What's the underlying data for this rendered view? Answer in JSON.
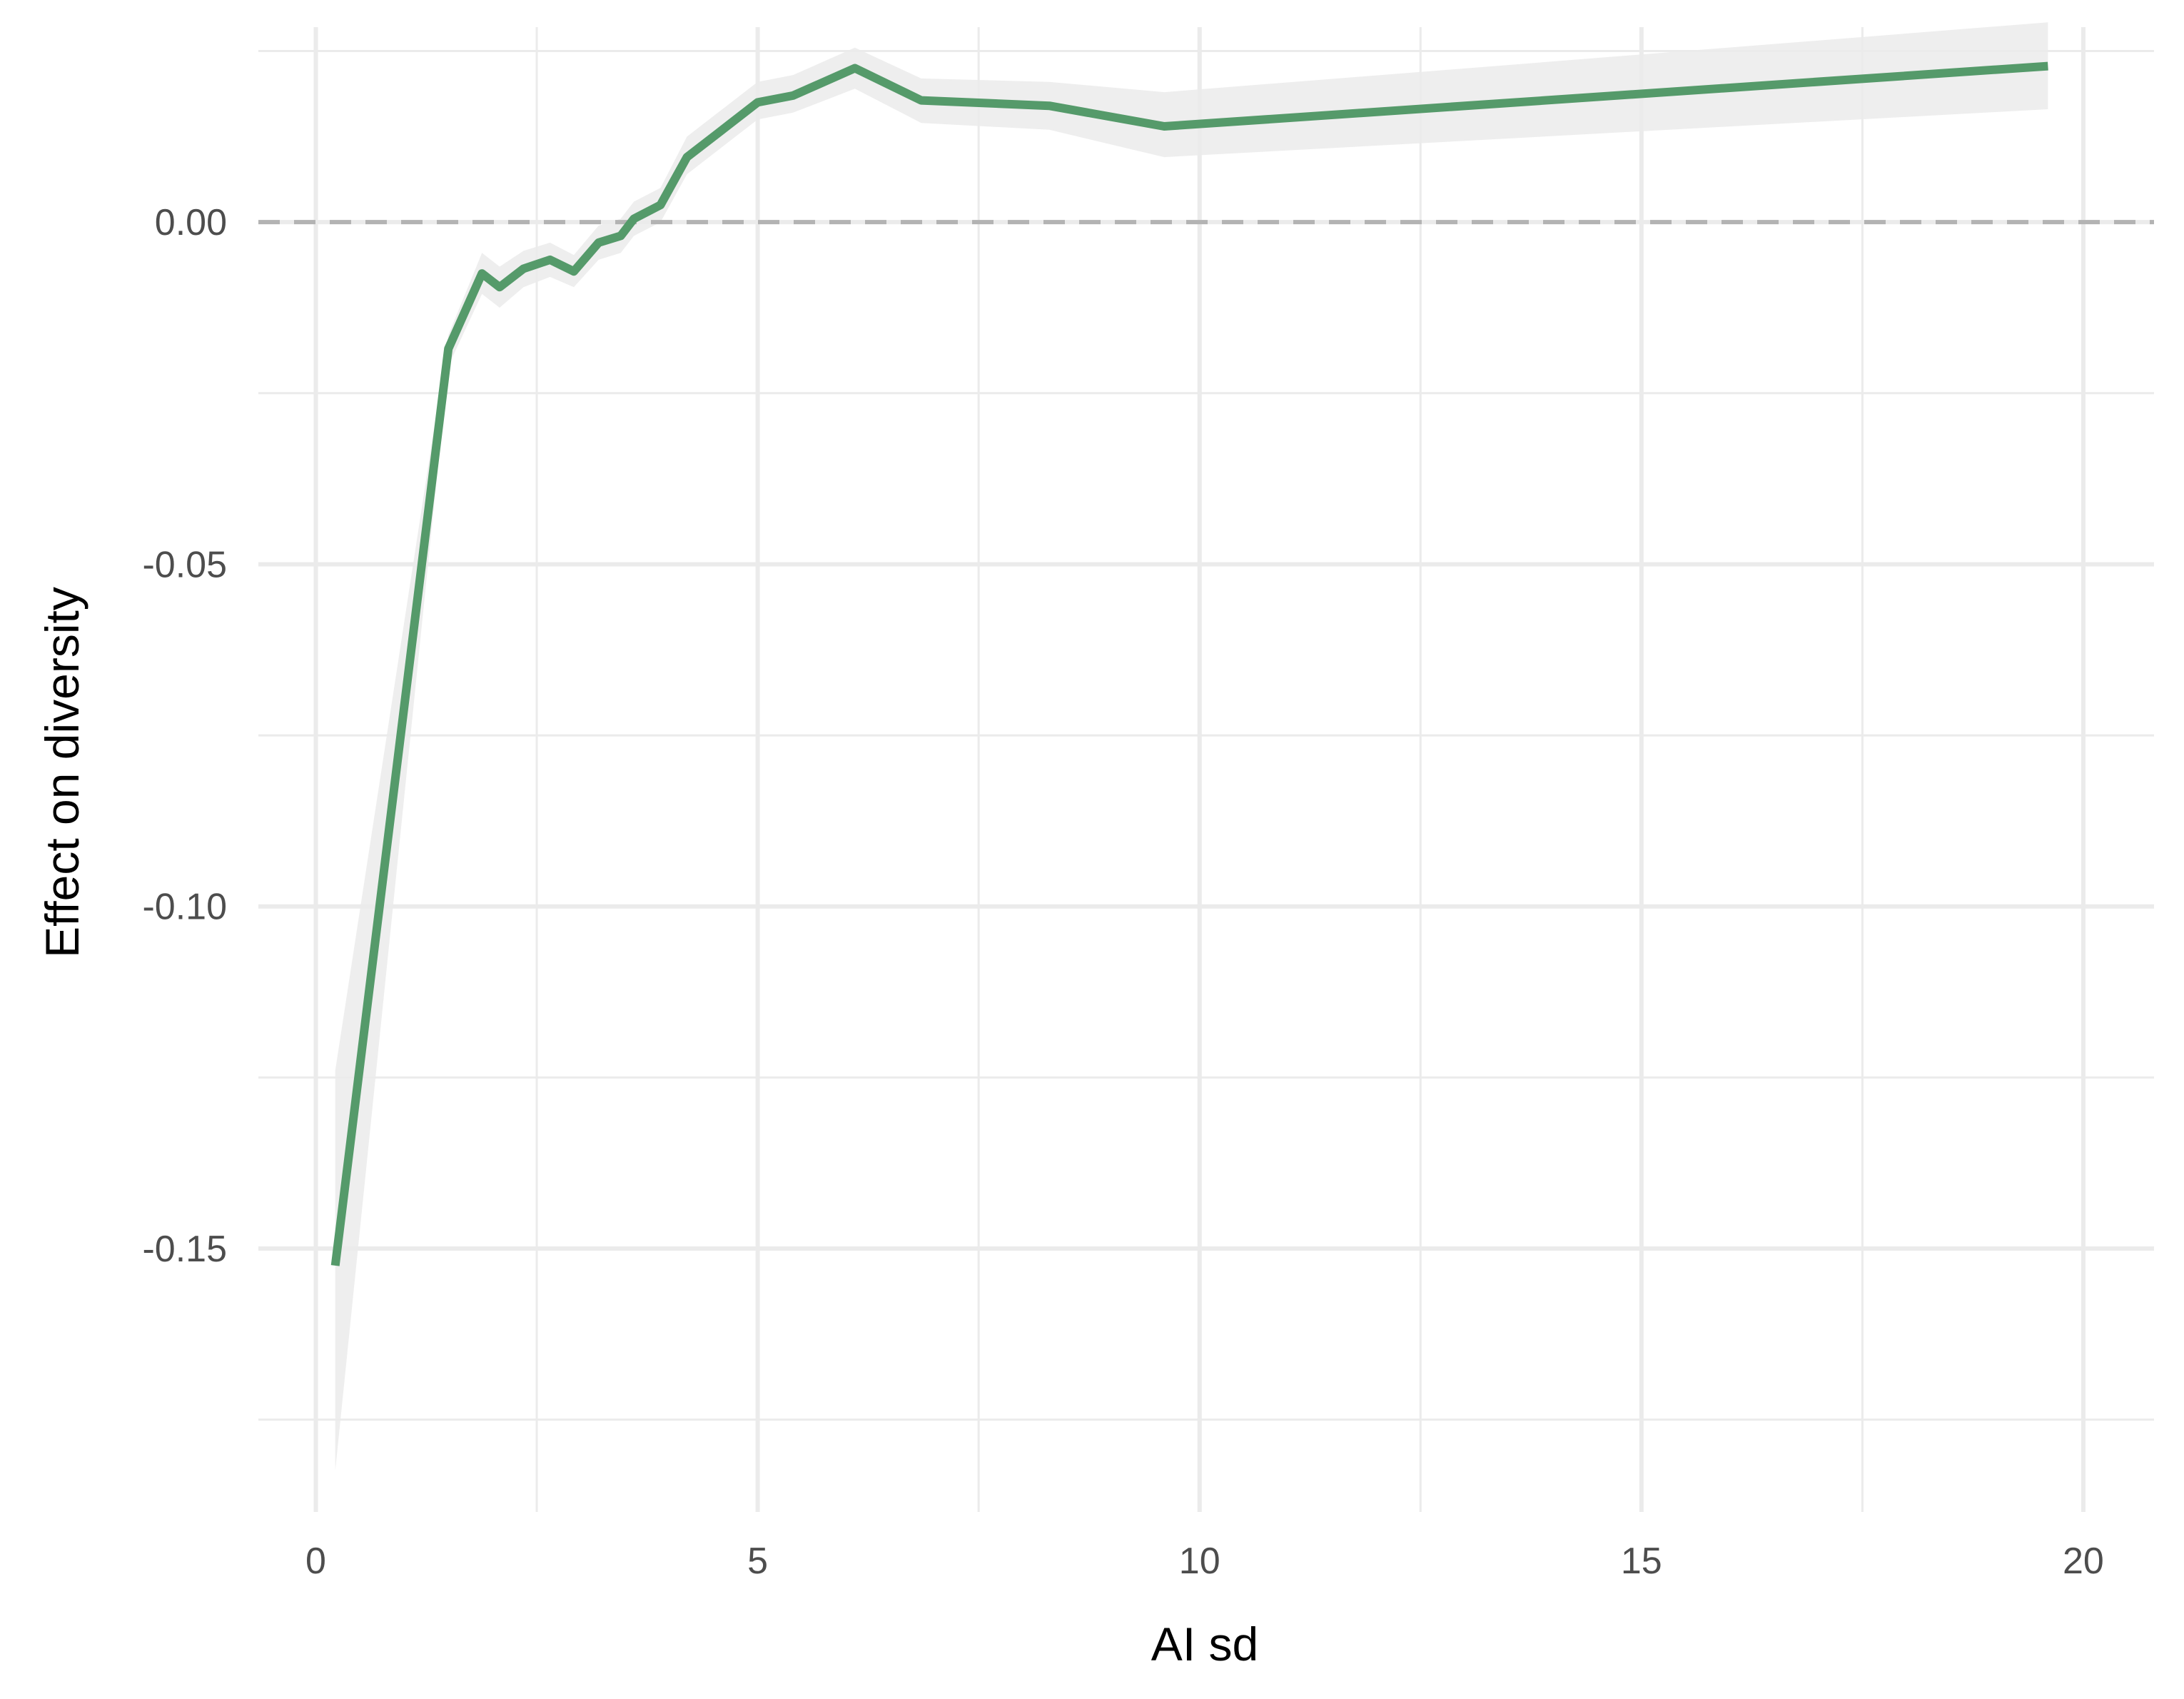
{
  "chart_data": {
    "type": "line",
    "title": "",
    "xlabel": "AI sd",
    "ylabel": "Effect on diversity",
    "xlim": [
      -0.65,
      20.8
    ],
    "ylim": [
      -0.1885,
      0.0285
    ],
    "xticks": [
      0,
      5,
      10,
      15,
      20
    ],
    "xtick_labels": [
      "0",
      "5",
      "10",
      "15",
      "20"
    ],
    "yticks": [
      -0.15,
      -0.1,
      -0.05,
      0.0
    ],
    "ytick_labels": [
      "-0.15",
      "-0.10",
      "-0.05",
      "0.00"
    ],
    "grid": true,
    "reference_line": {
      "y": 0,
      "style": "dashed",
      "color": "#b3b3b3"
    },
    "series": [
      {
        "color": "#559a6a",
        "band_color": "#ebebeb",
        "points": [
          {
            "x": 0.22,
            "y": -0.1525,
            "lo": -0.1825,
            "hi": -0.124
          },
          {
            "x": 1.5,
            "y": -0.0185,
            "lo": -0.021,
            "hi": -0.0165
          },
          {
            "x": 1.88,
            "y": -0.0075,
            "lo": -0.0105,
            "hi": -0.0045
          },
          {
            "x": 2.08,
            "y": -0.0095,
            "lo": -0.0125,
            "hi": -0.0065
          },
          {
            "x": 2.35,
            "y": -0.0068,
            "lo": -0.0095,
            "hi": -0.0042
          },
          {
            "x": 2.65,
            "y": -0.0055,
            "lo": -0.008,
            "hi": -0.003
          },
          {
            "x": 2.92,
            "y": -0.0072,
            "lo": -0.0095,
            "hi": -0.0048
          },
          {
            "x": 3.2,
            "y": -0.003,
            "lo": -0.0055,
            "hi": -0.0005
          },
          {
            "x": 3.45,
            "y": -0.002,
            "lo": -0.0045,
            "hi": 0.0005
          },
          {
            "x": 3.6,
            "y": 0.0005,
            "lo": -0.002,
            "hi": 0.003
          },
          {
            "x": 3.9,
            "y": 0.0025,
            "lo": 0.0,
            "hi": 0.005
          },
          {
            "x": 4.2,
            "y": 0.0095,
            "lo": 0.007,
            "hi": 0.0125
          },
          {
            "x": 4.55,
            "y": 0.013,
            "lo": 0.0105,
            "hi": 0.016
          },
          {
            "x": 5.0,
            "y": 0.0175,
            "lo": 0.015,
            "hi": 0.0205
          },
          {
            "x": 5.4,
            "y": 0.0185,
            "lo": 0.016,
            "hi": 0.0215
          },
          {
            "x": 6.1,
            "y": 0.0225,
            "lo": 0.0195,
            "hi": 0.0255
          },
          {
            "x": 6.85,
            "y": 0.0178,
            "lo": 0.0145,
            "hi": 0.021
          },
          {
            "x": 8.3,
            "y": 0.017,
            "lo": 0.0135,
            "hi": 0.0205
          },
          {
            "x": 9.6,
            "y": 0.014,
            "lo": 0.0095,
            "hi": 0.019
          },
          {
            "x": 19.6,
            "y": 0.0228,
            "lo": 0.0165,
            "hi": 0.0292
          }
        ]
      }
    ]
  }
}
